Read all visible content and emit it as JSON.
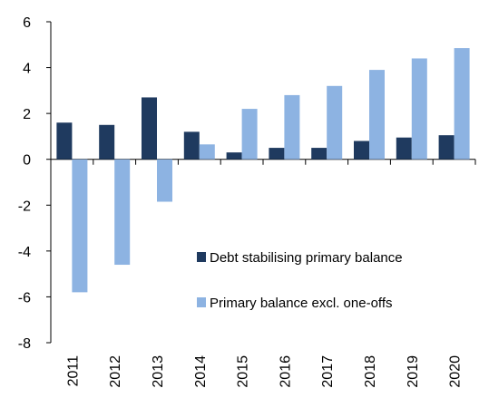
{
  "chart_data": {
    "type": "bar",
    "categories": [
      "2011",
      "2012",
      "2013",
      "2014",
      "2015",
      "2016",
      "2017",
      "2018",
      "2019",
      "2020"
    ],
    "series": [
      {
        "name": "Debt stabilising primary balance",
        "color": "#1f3a5f",
        "values": [
          1.6,
          1.5,
          2.7,
          1.2,
          0.3,
          0.5,
          0.5,
          0.8,
          0.95,
          1.05
        ]
      },
      {
        "name": "Primary balance excl. one-offs",
        "color": "#8db3e2",
        "values": [
          -5.8,
          -4.6,
          -1.85,
          0.65,
          2.2,
          2.8,
          3.2,
          3.9,
          4.4,
          4.85
        ]
      }
    ],
    "ylim": [
      -8,
      6
    ],
    "yticks": [
      6,
      4,
      2,
      0,
      -2,
      -4,
      -6,
      -8
    ],
    "grid": false,
    "legend_position": "bottom-right"
  }
}
